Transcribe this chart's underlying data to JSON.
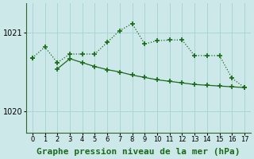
{
  "x": [
    0,
    1,
    2,
    3,
    4,
    5,
    6,
    7,
    8,
    9,
    10,
    11,
    12,
    13,
    14,
    15,
    16,
    17
  ],
  "y_dotted": [
    1020.68,
    1020.82,
    1020.62,
    1020.73,
    1020.73,
    1020.73,
    1020.88,
    1021.03,
    1021.12,
    1020.86,
    1020.9,
    1020.91,
    1020.91,
    1020.71,
    1020.71,
    1020.71,
    1020.42,
    1020.3
  ],
  "y_solid": [
    1020.68,
    null,
    1020.54,
    1020.67,
    1020.62,
    1020.57,
    1020.53,
    1020.5,
    1020.46,
    1020.43,
    1020.4,
    1020.38,
    1020.36,
    1020.34,
    1020.33,
    1020.32,
    1020.31,
    1020.3
  ],
  "ylim_min": 1019.72,
  "ylim_max": 1021.38,
  "yticks": [
    1020,
    1021
  ],
  "bg_color": "#cce8e8",
  "grid_color": "#aad4d4",
  "line_color": "#1a6b1a",
  "title": "Graphe pression niveau de la mer (hPa)",
  "title_fontsize": 8
}
